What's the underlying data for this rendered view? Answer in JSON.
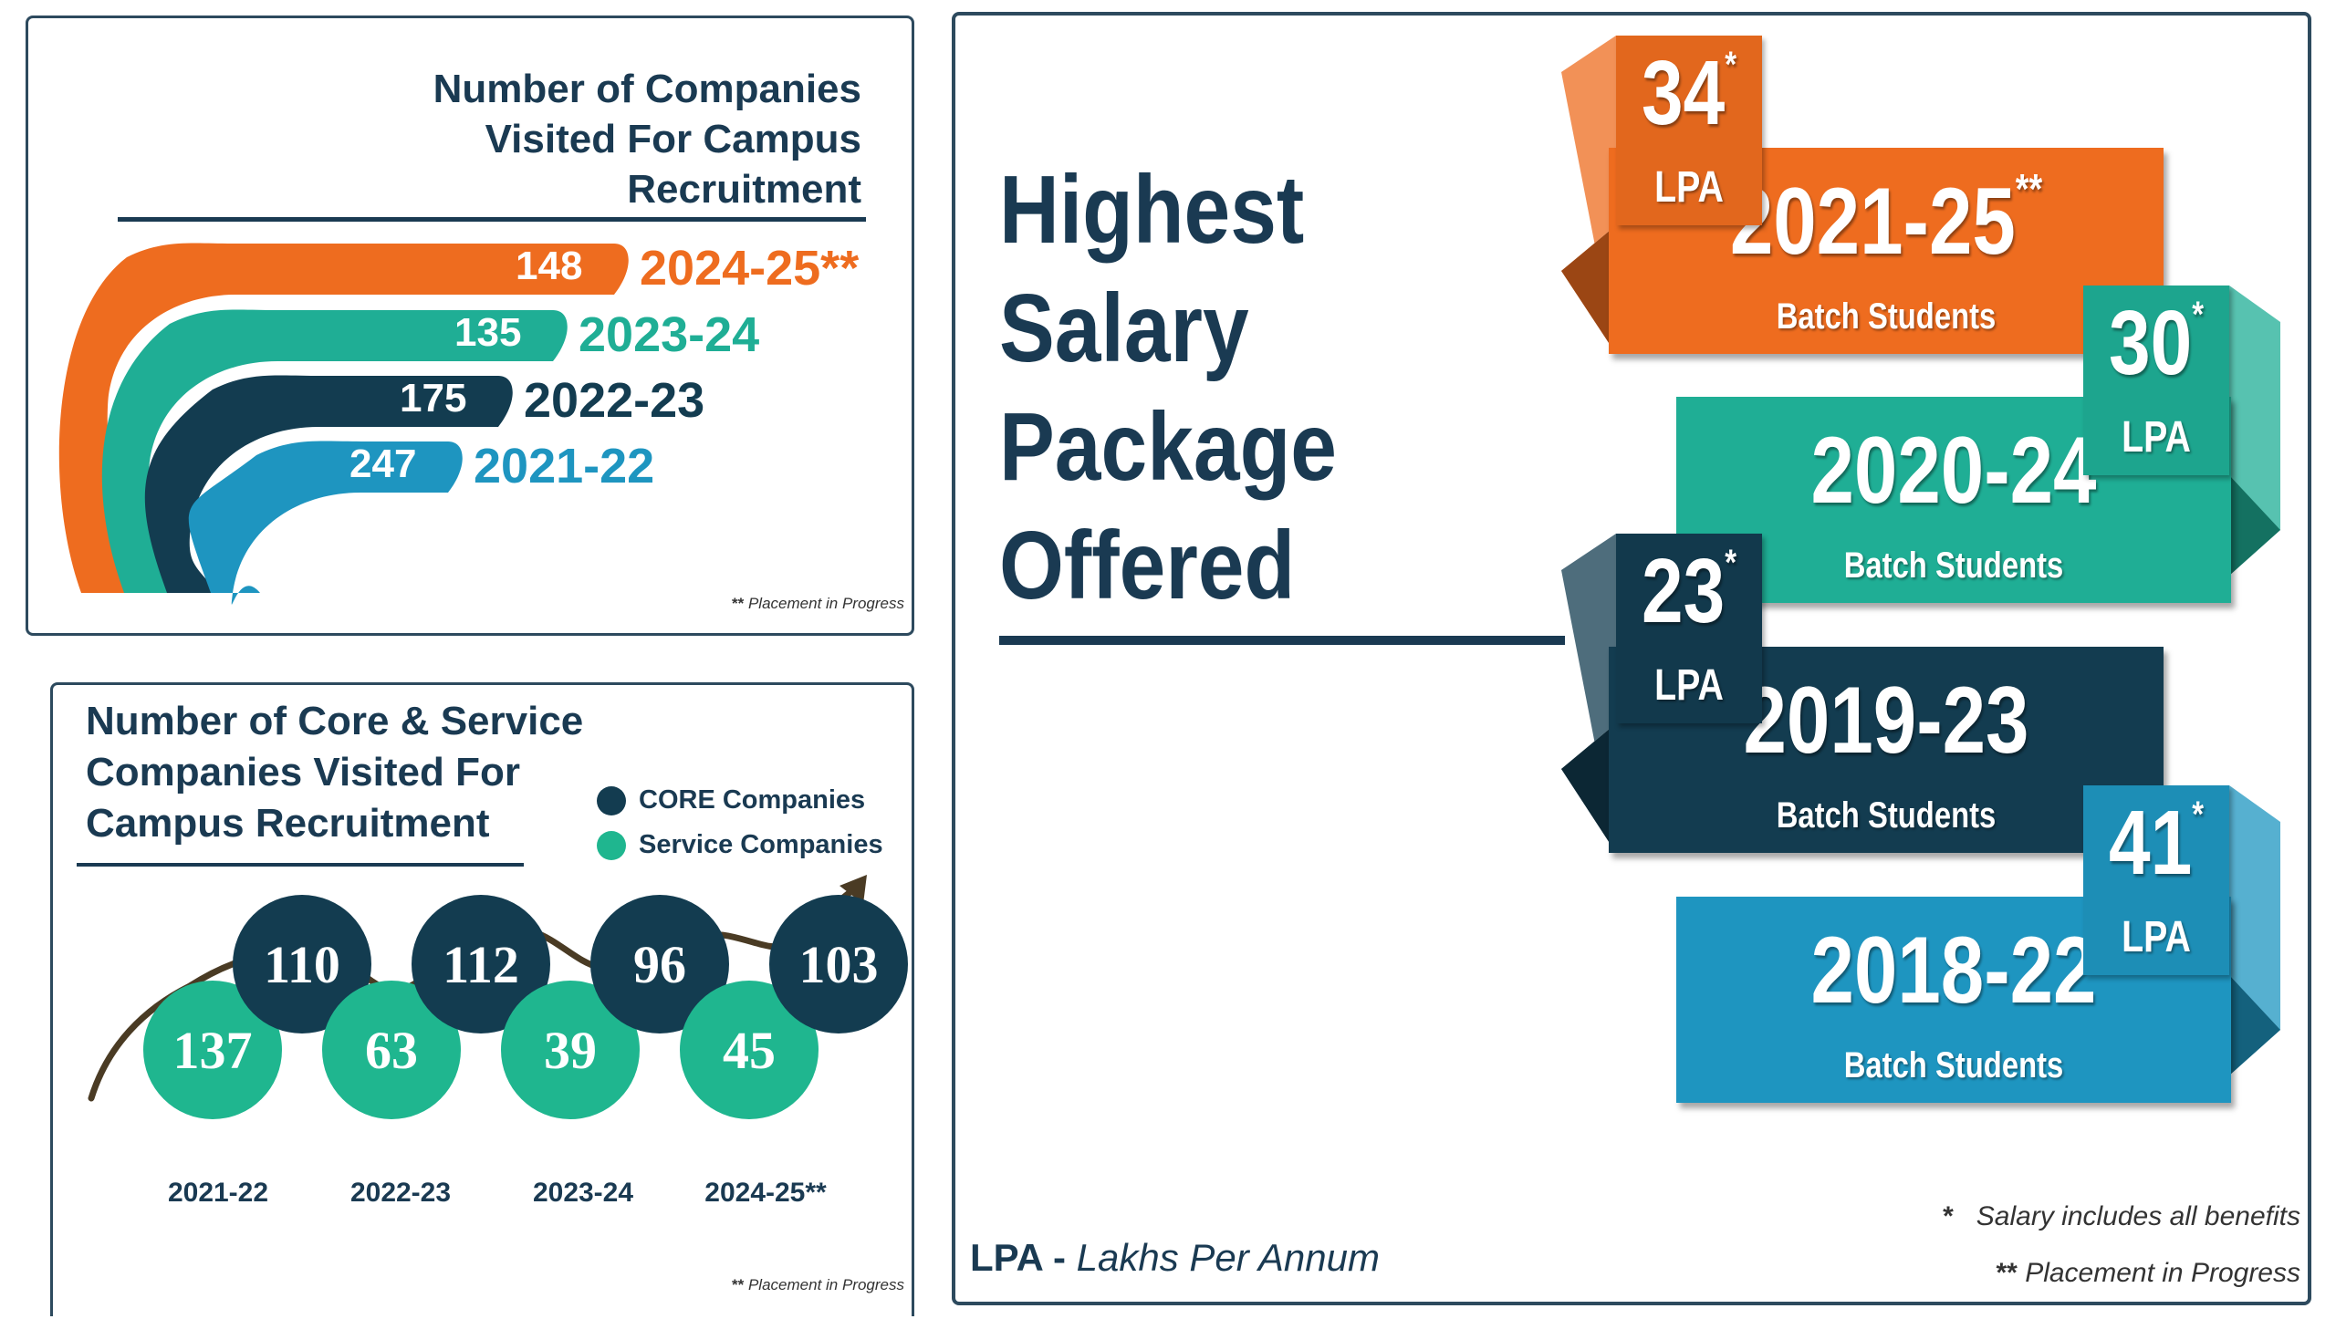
{
  "companies_panel": {
    "title_lines": [
      "Number of Companies",
      "Visited For Campus",
      "Recruitment"
    ],
    "footnote_marker": "**",
    "footnote_text": "Placement in Progress"
  },
  "core_panel": {
    "title_lines": [
      "Number of Core & Service",
      "Companies Visited For",
      "Campus Recruitment"
    ],
    "legend": {
      "core": "CORE Companies",
      "service": "Service Companies"
    },
    "footnote_marker": "**",
    "footnote_text": "Placement in Progress"
  },
  "salary_panel": {
    "title_lines": [
      "Highest",
      "Salary",
      "Package",
      "Offered"
    ],
    "lpa_abbr": "LPA -",
    "lpa_full": "Lakhs Per Annum",
    "note1_marker": "*",
    "note1_text": "Salary includes all benefits",
    "note2_marker": "**",
    "note2_text": "Placement in Progress",
    "unit": "LPA",
    "batch_suffix": "Batch Students"
  },
  "colors": {
    "orange": "#ee6c1f",
    "teal": "#1fae95",
    "navy": "#133c50",
    "blue": "#1e95c0",
    "text_dark": "#1a3a52"
  },
  "chart_data": [
    {
      "type": "bar",
      "title": "Number of Companies Visited For Campus Recruitment",
      "categories": [
        "2024-25**",
        "2023-24",
        "2022-23",
        "2021-22"
      ],
      "values": [
        148,
        135,
        175,
        247
      ],
      "colors": [
        "#ee6c1f",
        "#1fae95",
        "#133c50",
        "#1e95c0"
      ]
    },
    {
      "type": "bar",
      "title": "Number of Core & Service Companies Visited For Campus Recruitment",
      "categories": [
        "2021-22",
        "2022-23",
        "2023-24",
        "2024-25**"
      ],
      "series": [
        {
          "name": "CORE Companies",
          "values": [
            110,
            112,
            96,
            103
          ]
        },
        {
          "name": "Service Companies",
          "values": [
            137,
            63,
            39,
            45
          ]
        }
      ],
      "legend": "top-right"
    },
    {
      "type": "bar",
      "title": "Highest Salary Package Offered",
      "categories": [
        "2021-25",
        "2020-24",
        "2019-23",
        "2018-22"
      ],
      "category_markers": [
        "**",
        "",
        "",
        ""
      ],
      "values": [
        34,
        30,
        23,
        41
      ],
      "value_marker": "*",
      "unit": "LPA",
      "colors": [
        "#ee6c1f",
        "#1fae95",
        "#133c50",
        "#1e95c0"
      ]
    }
  ]
}
